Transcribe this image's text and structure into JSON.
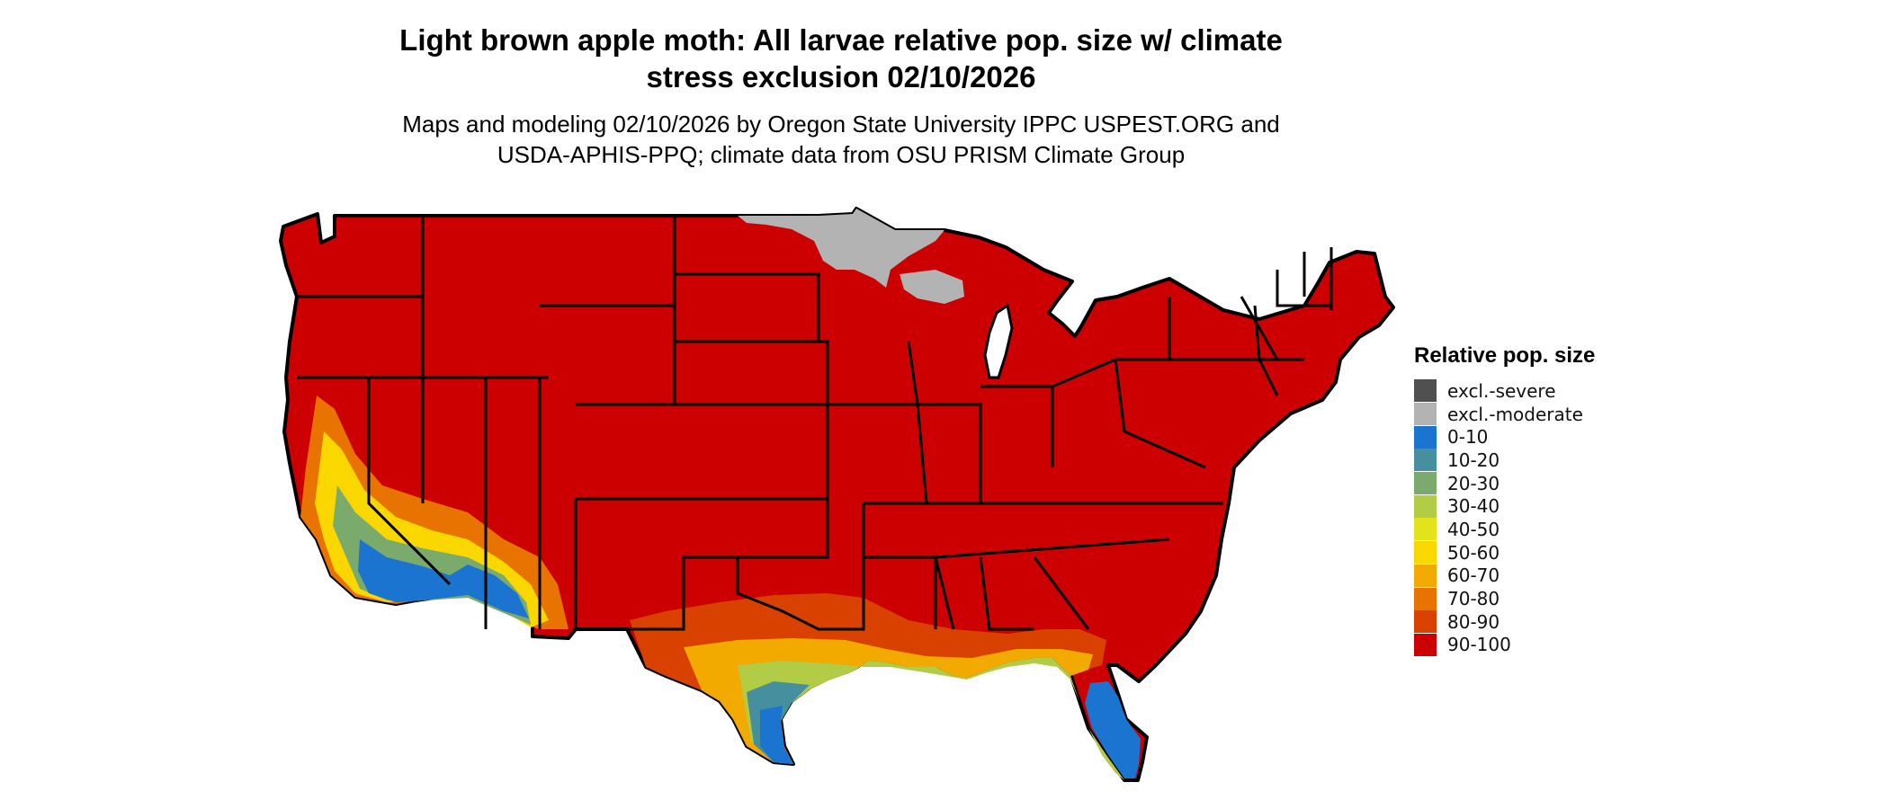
{
  "header": {
    "title_line1": "Light brown apple moth: All larvae relative pop. size w/ climate",
    "title_line2": "stress exclusion 02/10/2026",
    "subtitle_line1": "Maps and modeling 02/10/2026 by Oregon State University IPPC USPEST.ORG and",
    "subtitle_line2": "USDA-APHIS-PPQ; climate data from OSU PRISM Climate Group"
  },
  "legend": {
    "title": "Relative pop. size",
    "items": [
      {
        "label": "excl.-severe",
        "color": "#505050"
      },
      {
        "label": "excl.-moderate",
        "color": "#b3b3b3"
      },
      {
        "label": "0-10",
        "color": "#1c74d1"
      },
      {
        "label": "10-20",
        "color": "#468f9e"
      },
      {
        "label": "20-30",
        "color": "#7aab6d"
      },
      {
        "label": "30-40",
        "color": "#b2cc45"
      },
      {
        "label": "40-50",
        "color": "#e2e31a"
      },
      {
        "label": "50-60",
        "color": "#fbd700"
      },
      {
        "label": "60-70",
        "color": "#f2a900"
      },
      {
        "label": "70-80",
        "color": "#e87300"
      },
      {
        "label": "80-90",
        "color": "#d94100"
      },
      {
        "label": "90-100",
        "color": "#cc0000"
      }
    ]
  },
  "map": {
    "region": "conterminous-us",
    "dominant_class": "90-100",
    "outline_color": "#000000"
  }
}
